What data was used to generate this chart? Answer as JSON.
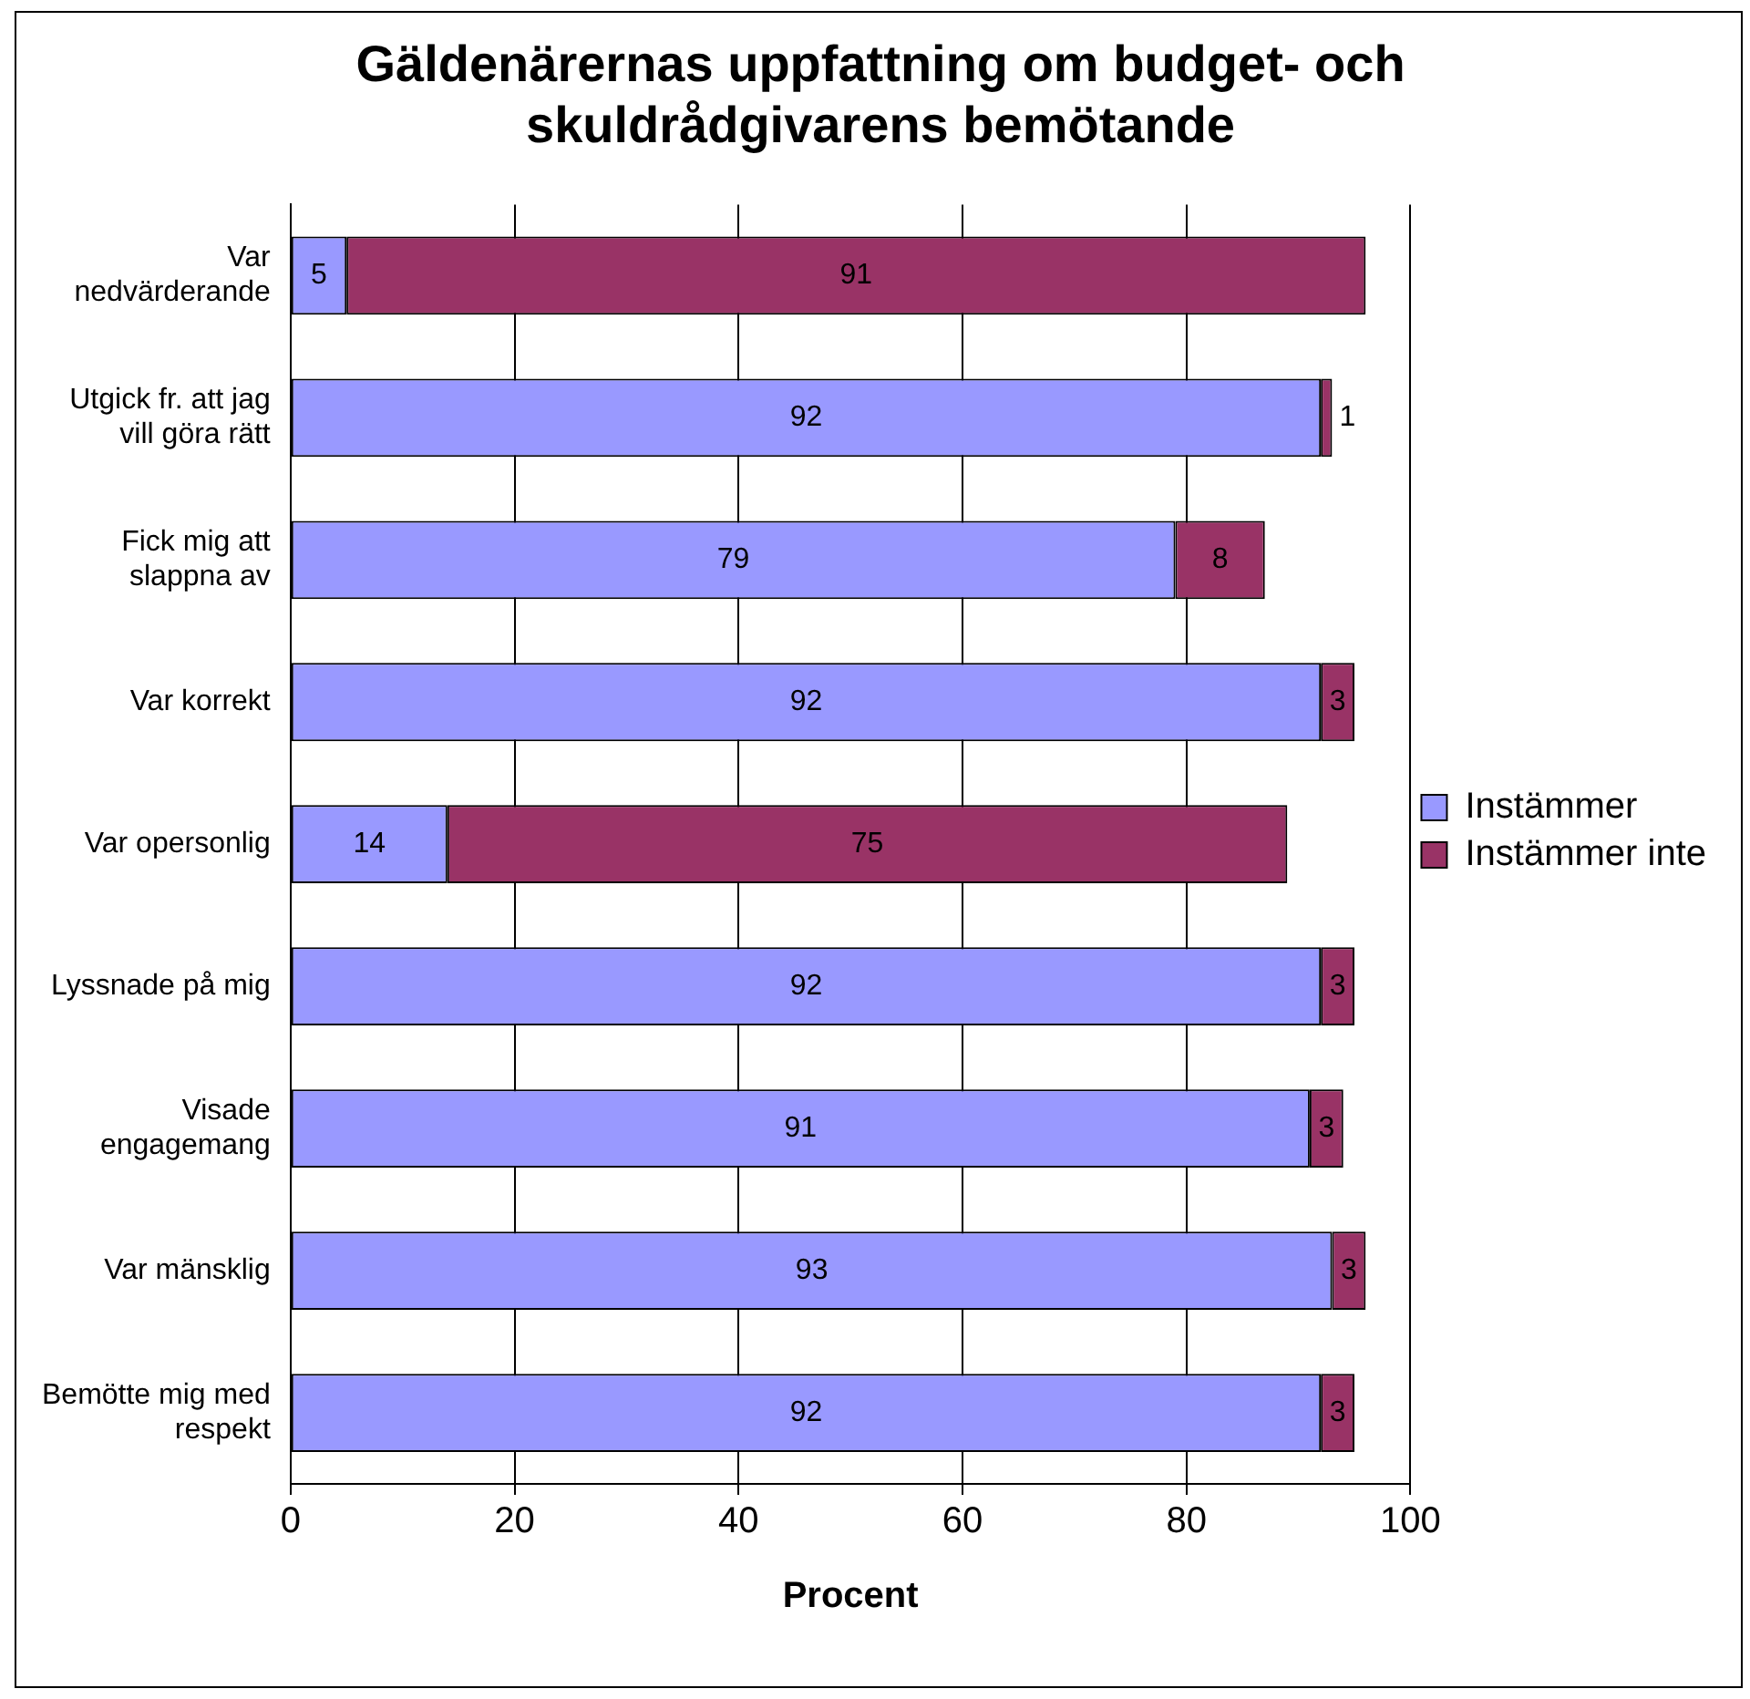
{
  "chart_data": {
    "type": "bar",
    "orientation": "horizontal",
    "stacked": true,
    "title": "Gäldenärernas uppfattning om budget- och skuldrådgivarens bemötande",
    "xlabel": "Procent",
    "categories": [
      "Var nedvärderande",
      "Utgick fr. att jag vill göra rätt",
      "Fick mig att slappna av",
      "Var korrekt",
      "Var opersonlig",
      "Lyssnade på mig",
      "Visade engagemang",
      "Var mänsklig",
      "Bemötte mig med respekt"
    ],
    "series": [
      {
        "name": "Instämmer",
        "color": "#9999ff",
        "values": [
          5,
          92,
          79,
          92,
          14,
          92,
          91,
          93,
          92
        ]
      },
      {
        "name": "Instämmer inte",
        "color": "#993366",
        "values": [
          91,
          1,
          8,
          3,
          75,
          3,
          3,
          3,
          3
        ]
      }
    ],
    "xlim": [
      0,
      100
    ],
    "xticks": [
      0,
      20,
      40,
      60,
      80,
      100
    ],
    "grid": "x",
    "legend": "right",
    "data_labels": true
  }
}
